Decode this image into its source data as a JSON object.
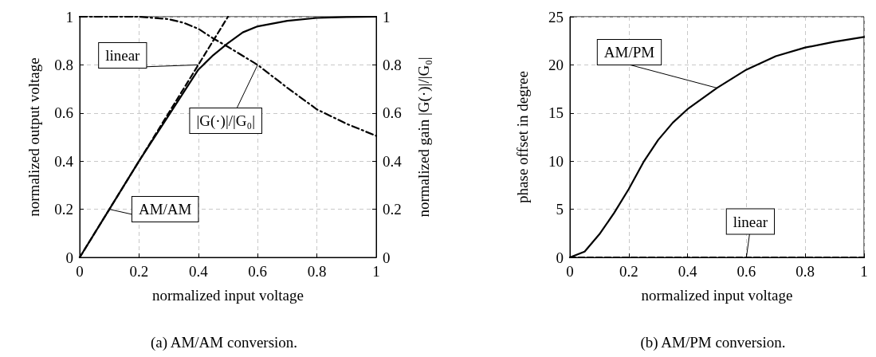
{
  "chart_data": [
    {
      "type": "line",
      "title": "(a) AM/AM conversion.",
      "xlabel": "normalized input voltage",
      "ylabel": "normalized output voltage",
      "y2label": "normalized gain |G(·)|/|G₀|",
      "xlim": [
        0,
        1
      ],
      "xticks": [
        0,
        0.2,
        0.4,
        0.6,
        0.8,
        1
      ],
      "ylim": [
        0,
        1
      ],
      "yticks": [
        0,
        0.2,
        0.4,
        0.6,
        0.8,
        1
      ],
      "y2lim": [
        0,
        1
      ],
      "y2ticks": [
        0,
        0.2,
        0.4,
        0.6,
        0.8,
        1
      ],
      "grid": true,
      "marker": "none",
      "series": [
        {
          "name": "AM/AM",
          "color": "#000000",
          "line_style": "solid",
          "x": [
            0,
            0.1,
            0.2,
            0.3,
            0.35,
            0.4,
            0.45,
            0.5,
            0.55,
            0.6,
            0.7,
            0.8,
            0.9,
            1
          ],
          "values": [
            0,
            0.2,
            0.4,
            0.59,
            0.685,
            0.78,
            0.84,
            0.89,
            0.935,
            0.96,
            0.983,
            0.995,
            0.999,
            1
          ]
        },
        {
          "name": "linear",
          "color": "#000000",
          "line_style": "dashed",
          "x": [
            0,
            0.1,
            0.2,
            0.3,
            0.4,
            0.5
          ],
          "values": [
            0,
            0.2,
            0.4,
            0.6,
            0.8,
            1
          ]
        },
        {
          "name": "|G(·)|/|G₀|",
          "color": "#000000",
          "line_style": "dashdot",
          "axis": "y2",
          "x": [
            0,
            0.1,
            0.2,
            0.3,
            0.35,
            0.4,
            0.45,
            0.5,
            0.6,
            0.7,
            0.8,
            0.9,
            1
          ],
          "values": [
            1,
            1,
            1,
            0.99,
            0.975,
            0.95,
            0.91,
            0.875,
            0.8,
            0.705,
            0.615,
            0.555,
            0.505
          ]
        }
      ]
    },
    {
      "type": "line",
      "title": "(b) AM/PM conversion.",
      "xlabel": "normalized input voltage",
      "ylabel": "phase offset in degree",
      "xlim": [
        0,
        1
      ],
      "xticks": [
        0,
        0.2,
        0.4,
        0.6,
        0.8,
        1
      ],
      "ylim": [
        0,
        25
      ],
      "yticks": [
        0,
        5,
        10,
        15,
        20,
        25
      ],
      "grid": true,
      "marker": "none",
      "series": [
        {
          "name": "AM/PM",
          "color": "#000000",
          "line_style": "solid",
          "x": [
            0,
            0.05,
            0.1,
            0.15,
            0.2,
            0.25,
            0.3,
            0.35,
            0.4,
            0.5,
            0.6,
            0.7,
            0.8,
            0.9,
            1
          ],
          "values": [
            0,
            0.6,
            2.4,
            4.6,
            7.1,
            9.9,
            12.2,
            14.0,
            15.4,
            17.6,
            19.5,
            20.9,
            21.8,
            22.4,
            22.9
          ]
        },
        {
          "name": "linear",
          "color": "#000000",
          "line_style": "dashed",
          "x": [
            0,
            0.2,
            0.4,
            0.6,
            0.8,
            1
          ],
          "values": [
            0,
            0,
            0,
            0,
            0,
            0
          ]
        }
      ]
    }
  ]
}
